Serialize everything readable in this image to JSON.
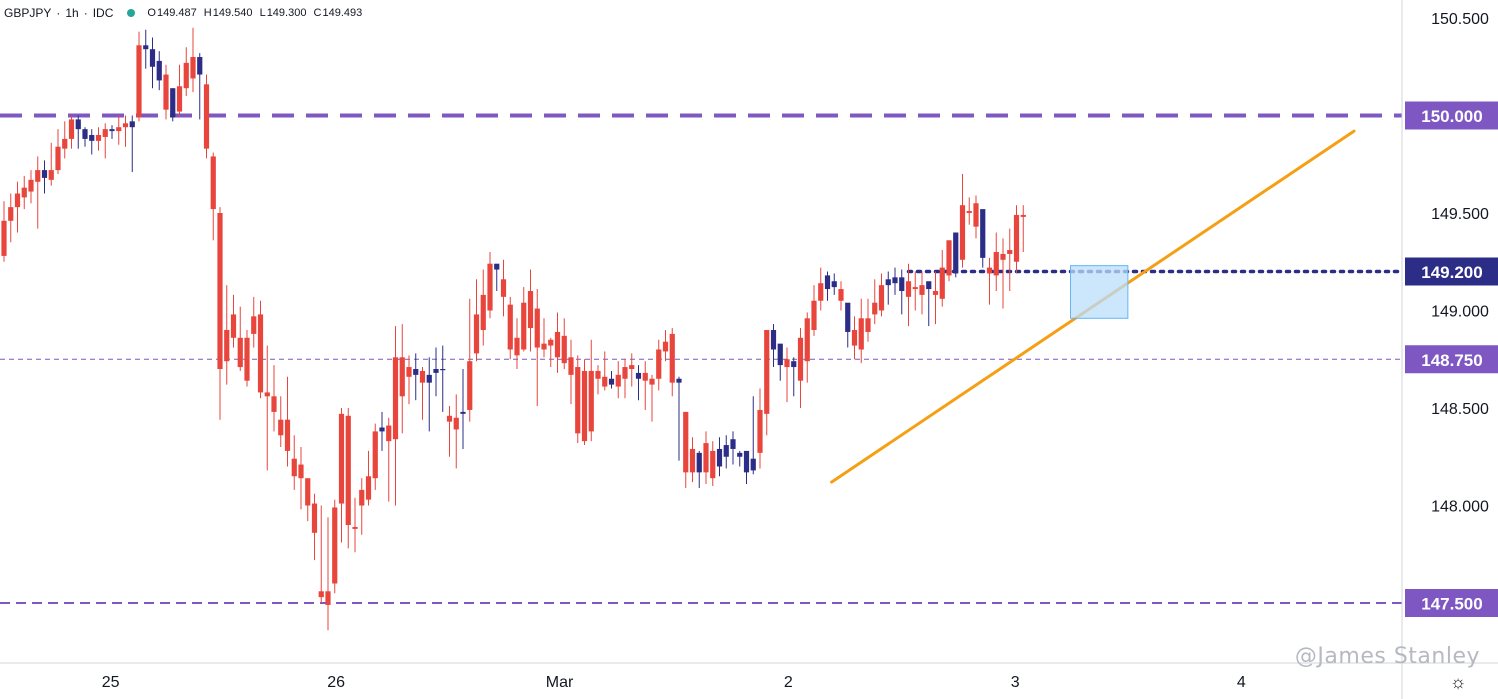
{
  "header": {
    "symbol": "GBPJPY",
    "interval": "1h",
    "source": "IDC",
    "status_color": "#26a69a",
    "ohlc": [
      {
        "label": "O",
        "value": "149.487"
      },
      {
        "label": "H",
        "value": "149.540"
      },
      {
        "label": "L",
        "value": "149.300"
      },
      {
        "label": "C",
        "value": "149.493"
      }
    ]
  },
  "watermark": "@James Stanley",
  "settings_icon": "gear-icon",
  "colors": {
    "up": "#2b2d86",
    "down": "#e8453c",
    "level_line": "#7e57c2",
    "level_label_bg": "#7e57c2",
    "key_label_bg": "#2b2d86",
    "trendline": "#f5a014",
    "zone_fill": "#bbdefb",
    "zone_stroke": "#64b5f6",
    "axis_text": "#131722"
  },
  "chart_data": {
    "type": "candlestick",
    "symbol": "GBPJPY",
    "interval": "1h",
    "y_axis": {
      "range": [
        147.22,
        150.65
      ],
      "ticks": [
        "150.500",
        "149.500",
        "149.000",
        "148.500",
        "148.000"
      ]
    },
    "x_axis": {
      "labels": [
        {
          "text": "25",
          "bar": 15.8
        },
        {
          "text": "26",
          "bar": 49.2
        },
        {
          "text": "Mar",
          "bar": 82.3
        },
        {
          "text": "2",
          "bar": 116.2
        },
        {
          "text": "3",
          "bar": 149.8
        },
        {
          "text": "4",
          "bar": 183.3
        }
      ]
    },
    "horizontal_levels": [
      {
        "value": 150.0,
        "label": "150.000",
        "style": "dashed-thick",
        "label_style": "purple"
      },
      {
        "value": 149.2,
        "label": "149.200",
        "style": "dotted",
        "label_style": "navy",
        "from_bar": 134
      },
      {
        "value": 148.75,
        "label": "148.750",
        "style": "dashed-thin",
        "label_style": "purple"
      },
      {
        "value": 147.5,
        "label": "147.500",
        "style": "dashed-medium",
        "label_style": "purple"
      }
    ],
    "trendline": {
      "start": {
        "bar": 122.6,
        "price": 148.12
      },
      "end": {
        "bar": 200.0,
        "price": 149.92
      }
    },
    "zone": {
      "from_bar": 158.0,
      "to_bar": 166.5,
      "price_top": 149.23,
      "price_bottom": 148.96
    },
    "candles": [
      [
        149.46,
        149.28,
        149.56,
        149.25
      ],
      [
        149.53,
        149.46,
        149.6,
        149.35
      ],
      [
        149.6,
        149.53,
        149.66,
        149.4
      ],
      [
        149.63,
        149.58,
        149.69,
        149.52
      ],
      [
        149.67,
        149.61,
        149.72,
        149.55
      ],
      [
        149.72,
        149.66,
        149.79,
        149.42
      ],
      [
        149.68,
        149.72,
        149.77,
        149.6
      ],
      [
        149.72,
        149.67,
        149.86,
        149.64
      ],
      [
        149.84,
        149.72,
        149.93,
        149.7
      ],
      [
        149.88,
        149.83,
        149.97,
        149.78
      ],
      [
        149.98,
        149.88,
        150.0,
        149.83
      ],
      [
        149.93,
        149.98,
        150.0,
        149.83
      ],
      [
        149.88,
        149.93,
        149.94,
        149.84
      ],
      [
        149.87,
        149.9,
        149.93,
        149.8
      ],
      [
        149.9,
        149.87,
        149.94,
        149.82
      ],
      [
        149.93,
        149.89,
        149.96,
        149.78
      ],
      [
        149.92,
        149.93,
        149.95,
        149.88
      ],
      [
        149.94,
        149.92,
        150.0,
        149.85
      ],
      [
        149.96,
        149.94,
        150.0,
        149.84
      ],
      [
        149.94,
        149.97,
        150.0,
        149.71
      ],
      [
        150.36,
        149.99,
        150.43,
        149.97
      ],
      [
        150.34,
        150.36,
        150.44,
        150.24
      ],
      [
        150.25,
        150.34,
        150.4,
        150.14
      ],
      [
        150.18,
        150.28,
        150.33,
        150.13
      ],
      [
        150.21,
        150.03,
        150.26,
        149.98
      ],
      [
        149.99,
        150.14,
        150.14,
        149.97
      ],
      [
        150.15,
        150.02,
        150.26,
        149.99
      ],
      [
        150.27,
        150.14,
        150.35,
        150.1
      ],
      [
        150.3,
        150.19,
        150.45,
        150.12
      ],
      [
        150.21,
        150.3,
        150.32,
        149.98
      ],
      [
        150.16,
        149.83,
        150.21,
        149.78
      ],
      [
        149.79,
        149.52,
        149.81,
        149.36
      ],
      [
        149.5,
        148.7,
        149.53,
        148.44
      ],
      [
        148.9,
        148.74,
        149.13,
        148.62
      ],
      [
        148.98,
        148.86,
        149.08,
        148.81
      ],
      [
        148.86,
        148.71,
        149.02,
        148.69
      ],
      [
        148.86,
        148.64,
        148.9,
        148.61
      ],
      [
        148.97,
        148.88,
        149.07,
        148.81
      ],
      [
        148.98,
        148.58,
        149.05,
        148.55
      ],
      [
        148.58,
        148.56,
        148.82,
        148.18
      ],
      [
        148.56,
        148.48,
        148.72,
        148.38
      ],
      [
        148.44,
        148.36,
        148.56,
        148.3
      ],
      [
        148.44,
        148.28,
        148.66,
        148.2
      ],
      [
        148.24,
        148.15,
        148.36,
        148.08
      ],
      [
        148.21,
        148.14,
        148.3,
        147.98
      ],
      [
        148.14,
        148.0,
        148.12,
        147.92
      ],
      [
        148.01,
        147.86,
        148.06,
        147.72
      ],
      [
        147.56,
        147.53,
        148.0,
        147.5
      ],
      [
        147.56,
        147.49,
        147.94,
        147.36
      ],
      [
        147.99,
        147.6,
        148.03,
        147.55
      ],
      [
        148.47,
        148.01,
        148.5,
        147.81
      ],
      [
        148.46,
        147.9,
        148.5,
        147.78
      ],
      [
        147.89,
        147.88,
        148.04,
        147.76
      ],
      [
        148.08,
        148.0,
        148.14,
        147.85
      ],
      [
        148.15,
        148.03,
        148.28,
        148.0
      ],
      [
        148.38,
        148.14,
        148.42,
        148.08
      ],
      [
        148.38,
        148.4,
        148.48,
        148.28
      ],
      [
        148.41,
        148.33,
        148.45,
        148.02
      ],
      [
        148.76,
        148.34,
        148.92,
        148.0
      ],
      [
        148.76,
        148.56,
        148.93,
        148.37
      ],
      [
        148.71,
        148.66,
        148.77,
        148.52
      ],
      [
        148.67,
        148.7,
        148.78,
        148.54
      ],
      [
        148.69,
        148.63,
        148.71,
        148.44
      ],
      [
        148.63,
        148.67,
        148.76,
        148.38
      ],
      [
        148.68,
        148.7,
        148.81,
        148.56
      ],
      [
        148.7,
        148.7,
        148.82,
        148.48
      ],
      [
        148.46,
        148.43,
        148.51,
        148.25
      ],
      [
        148.45,
        148.39,
        148.57,
        148.19
      ],
      [
        148.47,
        148.48,
        148.7,
        148.29
      ],
      [
        148.74,
        148.49,
        149.06,
        148.43
      ],
      [
        148.98,
        148.78,
        149.16,
        148.74
      ],
      [
        149.08,
        148.9,
        149.21,
        148.82
      ],
      [
        149.24,
        149.0,
        149.3,
        148.96
      ],
      [
        149.21,
        149.24,
        149.22,
        149.1
      ],
      [
        149.16,
        149.07,
        149.26,
        148.97
      ],
      [
        149.03,
        148.8,
        149.07,
        148.75
      ],
      [
        148.86,
        148.77,
        148.96,
        148.7
      ],
      [
        149.04,
        148.8,
        149.12,
        148.79
      ],
      [
        149.1,
        148.91,
        149.21,
        148.79
      ],
      [
        149.01,
        148.81,
        149.11,
        148.51
      ],
      [
        148.83,
        148.8,
        148.96,
        148.76
      ],
      [
        148.85,
        148.82,
        148.86,
        148.71
      ],
      [
        148.89,
        148.76,
        148.99,
        148.68
      ],
      [
        148.87,
        148.73,
        148.96,
        148.7
      ],
      [
        148.76,
        148.67,
        148.85,
        148.52
      ],
      [
        148.71,
        148.37,
        148.77,
        148.32
      ],
      [
        148.69,
        148.33,
        148.75,
        148.31
      ],
      [
        148.69,
        148.38,
        148.85,
        148.33
      ],
      [
        148.69,
        148.65,
        148.72,
        148.57
      ],
      [
        148.66,
        148.61,
        148.79,
        148.59
      ],
      [
        148.62,
        148.65,
        148.69,
        148.6
      ],
      [
        148.67,
        148.61,
        148.74,
        148.55
      ],
      [
        148.71,
        148.65,
        148.75,
        148.55
      ],
      [
        148.72,
        148.7,
        148.78,
        148.61
      ],
      [
        148.65,
        148.68,
        148.72,
        148.54
      ],
      [
        148.68,
        148.64,
        148.74,
        148.49
      ],
      [
        148.65,
        148.62,
        148.67,
        148.43
      ],
      [
        148.8,
        148.65,
        148.85,
        148.59
      ],
      [
        148.84,
        148.79,
        148.9,
        148.74
      ],
      [
        148.88,
        148.63,
        148.91,
        148.56
      ],
      [
        148.63,
        148.65,
        148.66,
        148.23
      ],
      [
        148.48,
        148.17,
        148.48,
        148.09
      ],
      [
        148.29,
        148.17,
        148.35,
        148.12
      ],
      [
        148.17,
        148.27,
        148.28,
        148.09
      ],
      [
        148.32,
        148.17,
        148.38,
        148.11
      ],
      [
        148.28,
        148.14,
        148.33,
        148.1
      ],
      [
        148.2,
        148.29,
        148.35,
        148.15
      ],
      [
        148.25,
        148.31,
        148.36,
        148.19
      ],
      [
        148.29,
        148.34,
        148.38,
        148.21
      ],
      [
        148.25,
        148.27,
        148.28,
        148.2
      ],
      [
        148.17,
        148.28,
        148.25,
        148.11
      ],
      [
        148.18,
        148.24,
        148.56,
        148.16
      ],
      [
        148.49,
        148.27,
        148.6,
        148.19
      ],
      [
        148.9,
        148.47,
        148.9,
        148.36
      ],
      [
        148.8,
        148.9,
        148.93,
        148.71
      ],
      [
        148.72,
        148.83,
        148.77,
        148.64
      ],
      [
        148.75,
        148.71,
        148.81,
        148.53
      ],
      [
        148.71,
        148.74,
        148.76,
        148.56
      ],
      [
        148.86,
        148.64,
        148.91,
        148.5
      ],
      [
        148.96,
        148.74,
        148.99,
        148.63
      ],
      [
        149.05,
        148.9,
        149.13,
        148.87
      ],
      [
        149.14,
        149.05,
        149.22,
        149.0
      ],
      [
        149.11,
        149.18,
        149.2,
        149.05
      ],
      [
        149.12,
        149.15,
        149.19,
        149.08
      ],
      [
        149.11,
        149.05,
        149.15,
        149.0
      ],
      [
        148.89,
        149.04,
        149.0,
        148.81
      ],
      [
        148.9,
        148.82,
        148.97,
        148.75
      ],
      [
        148.96,
        148.8,
        149.06,
        148.73
      ],
      [
        148.96,
        148.89,
        149.06,
        148.84
      ],
      [
        149.04,
        148.98,
        149.16,
        148.93
      ],
      [
        149.13,
        149.0,
        149.19,
        148.97
      ],
      [
        149.13,
        149.16,
        149.2,
        149.03
      ],
      [
        149.14,
        149.17,
        149.22,
        149.08
      ],
      [
        149.1,
        149.17,
        149.21,
        148.98
      ],
      [
        149.15,
        149.07,
        149.24,
        148.92
      ],
      [
        149.12,
        149.11,
        149.2,
        149.0
      ],
      [
        149.13,
        149.08,
        149.2,
        148.98
      ],
      [
        149.11,
        149.15,
        149.14,
        148.92
      ],
      [
        149.1,
        149.08,
        149.2,
        148.93
      ],
      [
        149.22,
        149.06,
        149.31,
        149.02
      ],
      [
        149.36,
        149.18,
        149.36,
        149.15
      ],
      [
        149.19,
        149.4,
        149.39,
        149.17
      ],
      [
        149.54,
        149.26,
        149.7,
        149.22
      ],
      [
        149.51,
        149.5,
        149.58,
        149.44
      ],
      [
        149.55,
        149.43,
        149.59,
        149.37
      ],
      [
        149.27,
        149.52,
        149.38,
        149.22
      ],
      [
        149.22,
        149.19,
        149.27,
        149.03
      ],
      [
        149.3,
        149.18,
        149.4,
        149.1
      ],
      [
        149.29,
        149.26,
        149.37,
        149.01
      ],
      [
        149.31,
        149.29,
        149.42,
        149.1
      ],
      [
        149.49,
        149.25,
        149.54,
        149.19
      ],
      [
        149.49,
        149.48,
        149.54,
        149.3
      ]
    ]
  }
}
